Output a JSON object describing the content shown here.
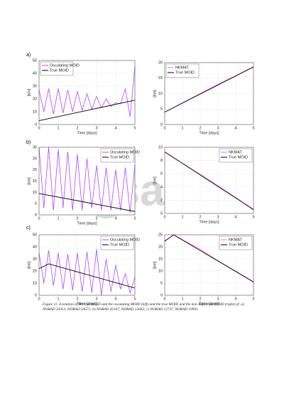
{
  "panel_labels": [
    "a)",
    "b)",
    "c)"
  ],
  "watermark": "esa",
  "caption": "Figure 11. Evolution of the true MOID and the osculating MOID (left) and the true MOID and the non-Keplerian MOID (right) of: a) NORAD 33913, NORAD 34571; b) NORAD 42167, NORAD 12663; c) NORAD 12737, NORAD 10991.",
  "chart_data": [
    {
      "type": "line",
      "xlabel": "Time [days]",
      "ylabel": "[km]",
      "xlim": [
        0,
        5
      ],
      "xticks": [
        0,
        1,
        2,
        3,
        4,
        5
      ],
      "ylim": [
        0,
        50
      ],
      "yticks": [
        0,
        10,
        20,
        30,
        40,
        50
      ],
      "grid": true,
      "legend": "upper left",
      "series": [
        {
          "name": "Osculating MOID",
          "color": "#b347ff",
          "x": [
            0,
            0.25,
            0.5,
            0.75,
            1,
            1.25,
            1.5,
            1.75,
            2,
            2.25,
            2.5,
            2.75,
            3,
            3.25,
            3.5,
            3.75,
            4,
            4.25,
            4.5,
            4.75,
            5
          ],
          "values": [
            27,
            10,
            28,
            8,
            28,
            9,
            27,
            10,
            26,
            11,
            24,
            12,
            22,
            13,
            20,
            14,
            17,
            16,
            28,
            6,
            45
          ]
        },
        {
          "name": "True MOID",
          "color": "#000000",
          "x": [
            0,
            5
          ],
          "values": [
            3,
            19
          ]
        }
      ]
    },
    {
      "type": "line",
      "xlabel": "Time [days]",
      "ylabel": "[km]",
      "xlim": [
        0,
        5
      ],
      "xticks": [
        0,
        1,
        2,
        3,
        4,
        5
      ],
      "ylim": [
        0,
        20
      ],
      "yticks": [
        0,
        5,
        10,
        15,
        20
      ],
      "grid": true,
      "legend": "upper left",
      "series": [
        {
          "name": "NKMAT",
          "color": "#ff66ff",
          "x": [
            0,
            1,
            2,
            3,
            4,
            5
          ],
          "values": [
            4,
            7,
            10,
            13,
            15.8,
            18.7
          ]
        },
        {
          "name": "True MOID",
          "color": "#000000",
          "x": [
            0,
            5
          ],
          "values": [
            4,
            18.6
          ]
        }
      ]
    },
    {
      "type": "line",
      "xlabel": "Time [days]",
      "ylabel": "[km]",
      "xlim": [
        0,
        5
      ],
      "xticks": [
        0,
        1,
        2,
        3,
        4,
        5
      ],
      "ylim": [
        0,
        30
      ],
      "yticks": [
        0,
        5,
        10,
        15,
        20,
        25,
        30
      ],
      "grid": true,
      "legend": "upper right",
      "series": [
        {
          "name": "Osculating MOID",
          "color": "#b347ff",
          "x": [
            0,
            0.25,
            0.5,
            0.75,
            1,
            1.25,
            1.5,
            1.75,
            2,
            2.25,
            2.5,
            2.75,
            3,
            3.25,
            3.5,
            3.75,
            4,
            4.25,
            4.5,
            4.75,
            5
          ],
          "values": [
            30,
            3,
            30,
            2,
            29,
            3,
            28,
            2,
            27,
            2,
            25,
            3,
            22,
            2,
            21,
            2,
            20,
            2,
            21,
            1,
            22
          ]
        },
        {
          "name": "True MOID",
          "color": "#000000",
          "x": [
            0,
            5
          ],
          "values": [
            9.5,
            1.5
          ]
        }
      ]
    },
    {
      "type": "line",
      "xlabel": "Time [days]",
      "ylabel": "[km]",
      "xlim": [
        0,
        5
      ],
      "xticks": [
        0,
        1,
        2,
        3,
        4,
        5
      ],
      "ylim": [
        0,
        10
      ],
      "yticks": [
        0,
        2,
        4,
        6,
        8,
        10
      ],
      "grid": true,
      "legend": "upper right",
      "series": [
        {
          "name": "NKMAT",
          "color": "#ff66ff",
          "x": [
            0,
            1,
            2,
            3,
            4,
            5
          ],
          "values": [
            9.3,
            7.6,
            5.9,
            4.2,
            2.4,
            0.5
          ]
        },
        {
          "name": "True MOID",
          "color": "#000000",
          "x": [
            0,
            5
          ],
          "values": [
            9.3,
            0.6
          ]
        }
      ]
    },
    {
      "type": "line",
      "xlabel": "Time [days]",
      "ylabel": "[km]",
      "xlim": [
        0,
        5
      ],
      "xticks": [
        0,
        1,
        2,
        3,
        4,
        5
      ],
      "ylim": [
        0,
        50
      ],
      "yticks": [
        0,
        10,
        20,
        30,
        40,
        50
      ],
      "grid": true,
      "legend": "upper right",
      "series": [
        {
          "name": "Osculating MOID",
          "color": "#b347ff",
          "x": [
            0,
            0.25,
            0.5,
            0.75,
            1,
            1.25,
            1.5,
            1.75,
            2,
            2.25,
            2.5,
            2.75,
            3,
            3.25,
            3.5,
            3.75,
            4,
            4.25,
            4.5,
            4.75,
            5
          ],
          "values": [
            35,
            10,
            37,
            8,
            35,
            5,
            34,
            4,
            35,
            3,
            36,
            2,
            38,
            0,
            30,
            3,
            25,
            5,
            18,
            2,
            15
          ]
        },
        {
          "name": "True MOID",
          "color": "#000000",
          "x": [
            0,
            0.5,
            5
          ],
          "values": [
            22,
            26,
            6
          ]
        }
      ]
    },
    {
      "type": "line",
      "xlabel": "Time [days]",
      "ylabel": "[km]",
      "xlim": [
        0,
        5
      ],
      "xticks": [
        0,
        1,
        2,
        3,
        4,
        5
      ],
      "ylim": [
        0,
        25
      ],
      "yticks": [
        0,
        5,
        10,
        15,
        20,
        25
      ],
      "grid": true,
      "legend": "upper right",
      "series": [
        {
          "name": "NKMAT",
          "color": "#ff66ff",
          "x": [
            0,
            0.5,
            1,
            2,
            3,
            4,
            5
          ],
          "values": [
            22.5,
            25,
            23,
            19,
            14.3,
            10,
            5.5
          ]
        },
        {
          "name": "True MOID",
          "color": "#000000",
          "x": [
            0,
            0.5,
            5
          ],
          "values": [
            22.3,
            25,
            5.5
          ]
        }
      ]
    }
  ]
}
